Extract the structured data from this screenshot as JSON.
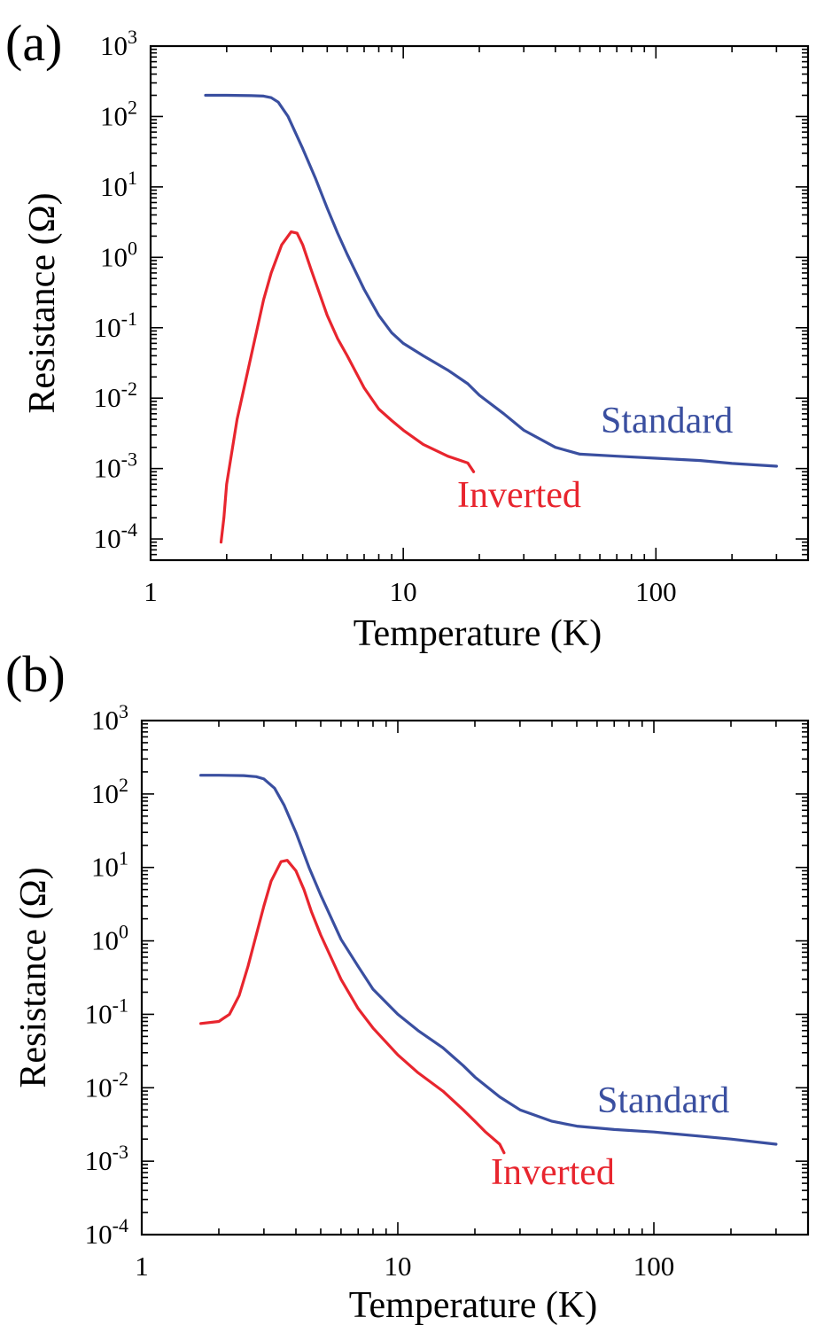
{
  "chart_data": [
    {
      "type": "line",
      "panel_label": "(a)",
      "xlabel": "Temperature (K)",
      "ylabel": "Resistance (Ω)",
      "xscale": "log",
      "yscale": "log",
      "xlim": [
        1,
        400
      ],
      "ylim": [
        5e-05,
        1000
      ],
      "xticks": [
        {
          "value": 1,
          "label": "1"
        },
        {
          "value": 10,
          "label": "10"
        },
        {
          "value": 100,
          "label": "100"
        }
      ],
      "yticks": [
        {
          "value": 1000,
          "base": "10",
          "exp": "3"
        },
        {
          "value": 100,
          "base": "10",
          "exp": "2"
        },
        {
          "value": 10,
          "base": "10",
          "exp": "1"
        },
        {
          "value": 1,
          "base": "10",
          "exp": "0"
        },
        {
          "value": 0.1,
          "base": "10",
          "exp": "-1"
        },
        {
          "value": 0.01,
          "base": "10",
          "exp": "-2"
        },
        {
          "value": 0.001,
          "base": "10",
          "exp": "-3"
        },
        {
          "value": 0.0001,
          "base": "10",
          "exp": "-4"
        }
      ],
      "series": [
        {
          "name": "Standard",
          "color": "#3a4fa0",
          "x": [
            1.65,
            2.0,
            2.5,
            2.8,
            3.0,
            3.2,
            3.5,
            4.0,
            4.5,
            5.0,
            5.5,
            6.0,
            7.0,
            8.0,
            9.0,
            10.0,
            12.0,
            15.0,
            18.0,
            20.0,
            25.0,
            30.0,
            40.0,
            50.0,
            70.0,
            100.0,
            150.0,
            200.0,
            300.0
          ],
          "y": [
            200,
            200,
            198,
            195,
            185,
            160,
            100,
            35,
            13,
            5.0,
            2.2,
            1.1,
            0.35,
            0.15,
            0.085,
            0.06,
            0.04,
            0.025,
            0.016,
            0.011,
            0.006,
            0.0035,
            0.002,
            0.0016,
            0.0015,
            0.0014,
            0.0013,
            0.00118,
            0.00108
          ],
          "label_position": "right of curve end"
        },
        {
          "name": "Inverted",
          "color": "#e8252e",
          "x": [
            1.9,
            1.95,
            2.0,
            2.2,
            2.5,
            2.8,
            3.0,
            3.3,
            3.6,
            3.8,
            4.0,
            4.3,
            4.6,
            5.0,
            5.5,
            6.0,
            7.0,
            8.0,
            9.0,
            10.0,
            12.0,
            15.0,
            18.0,
            19.0
          ],
          "y": [
            9e-05,
            0.0002,
            0.0006,
            0.005,
            0.04,
            0.25,
            0.6,
            1.5,
            2.3,
            2.2,
            1.5,
            0.7,
            0.35,
            0.15,
            0.07,
            0.04,
            0.014,
            0.007,
            0.0048,
            0.0035,
            0.0022,
            0.0015,
            0.0012,
            0.0009
          ],
          "label_position": "below curve end"
        }
      ]
    },
    {
      "type": "line",
      "panel_label": "(b)",
      "xlabel": "Temperature (K)",
      "ylabel": "Resistance (Ω)",
      "xscale": "log",
      "yscale": "log",
      "xlim": [
        1,
        400
      ],
      "ylim": [
        0.0001,
        1000
      ],
      "xticks": [
        {
          "value": 1,
          "label": "1"
        },
        {
          "value": 10,
          "label": "10"
        },
        {
          "value": 100,
          "label": "100"
        }
      ],
      "yticks": [
        {
          "value": 1000,
          "base": "10",
          "exp": "3"
        },
        {
          "value": 100,
          "base": "10",
          "exp": "2"
        },
        {
          "value": 10,
          "base": "10",
          "exp": "1"
        },
        {
          "value": 1,
          "base": "10",
          "exp": "0"
        },
        {
          "value": 0.1,
          "base": "10",
          "exp": "-1"
        },
        {
          "value": 0.01,
          "base": "10",
          "exp": "-2"
        },
        {
          "value": 0.001,
          "base": "10",
          "exp": "-3"
        },
        {
          "value": 0.0001,
          "base": "10",
          "exp": "-4"
        }
      ],
      "series": [
        {
          "name": "Standard",
          "color": "#3a4fa0",
          "x": [
            1.7,
            2.0,
            2.5,
            2.8,
            3.0,
            3.3,
            3.6,
            4.0,
            4.5,
            5.0,
            6.0,
            7.0,
            8.0,
            10.0,
            12.0,
            15.0,
            18.0,
            20.0,
            25.0,
            30.0,
            40.0,
            50.0,
            70.0,
            100.0,
            150.0,
            200.0,
            300.0
          ],
          "y": [
            180,
            180,
            178,
            172,
            160,
            120,
            70,
            30,
            10,
            4.2,
            1.05,
            0.45,
            0.22,
            0.1,
            0.06,
            0.035,
            0.02,
            0.014,
            0.0075,
            0.005,
            0.0035,
            0.003,
            0.0027,
            0.0025,
            0.0022,
            0.002,
            0.0017
          ],
          "label_position": "right of curve end"
        },
        {
          "name": "Inverted",
          "color": "#e8252e",
          "x": [
            1.7,
            2.0,
            2.2,
            2.4,
            2.6,
            2.8,
            3.0,
            3.2,
            3.5,
            3.7,
            4.0,
            4.3,
            4.6,
            5.0,
            6.0,
            7.0,
            8.0,
            10.0,
            12.0,
            15.0,
            18.0,
            20.0,
            22.0,
            25.0,
            26.0
          ],
          "y": [
            0.075,
            0.08,
            0.1,
            0.18,
            0.45,
            1.2,
            3.0,
            6.5,
            12,
            12.5,
            9,
            5.0,
            2.5,
            1.2,
            0.3,
            0.12,
            0.065,
            0.028,
            0.016,
            0.009,
            0.005,
            0.0035,
            0.0025,
            0.0017,
            0.0013
          ],
          "label_position": "below curve end"
        }
      ]
    }
  ]
}
